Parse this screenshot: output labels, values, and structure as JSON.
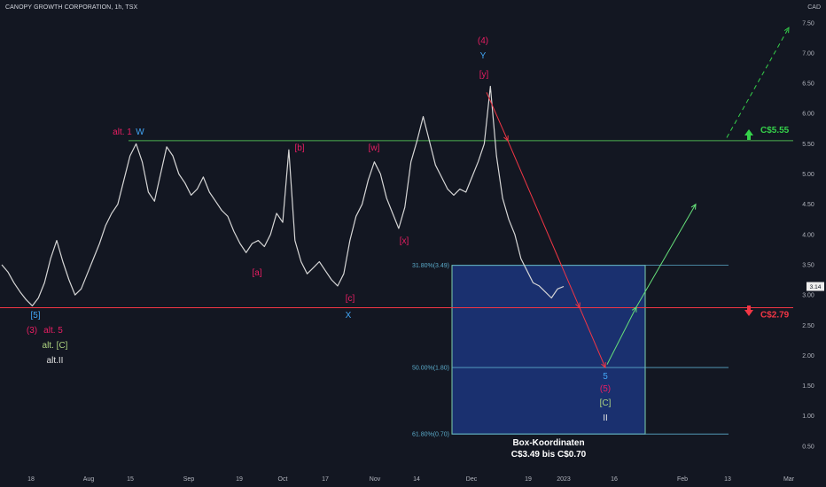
{
  "header": {
    "symbol": "CANOPY GROWTH CORPORATION",
    "timeframe": "1h",
    "exchange": "TSX"
  },
  "price_axis": {
    "currency": "CAD",
    "ticks": [
      "7.50",
      "7.00",
      "6.50",
      "6.00",
      "5.50",
      "5.00",
      "4.50",
      "4.00",
      "3.50",
      "3.00",
      "2.50",
      "2.00",
      "1.50",
      "1.00",
      "0.50"
    ],
    "current_price": "3.14"
  },
  "time_axis": {
    "ticks": [
      "18",
      "Aug",
      "15",
      "Sep",
      "19",
      "Oct",
      "17",
      "Nov",
      "14",
      "Dec",
      "19",
      "2023",
      "16",
      "Feb",
      "13",
      "Mar"
    ]
  },
  "levels": {
    "resistance": {
      "label": "C$5.55",
      "value": 5.55,
      "color": "#4caf50"
    },
    "support": {
      "label": "C$2.79",
      "value": 2.79,
      "color": "#f23645"
    }
  },
  "fibonacci": [
    {
      "label": "31.80%(3.49)",
      "value": 3.49
    },
    {
      "label": "50.00%(1.80)",
      "value": 1.8
    },
    {
      "label": "61.80%(0.70)",
      "value": 0.7
    }
  ],
  "target_box": {
    "title": "Box-Koordinaten",
    "subtitle": "C$3.49 bis C$0.70",
    "top": 3.49,
    "bottom": 0.7
  },
  "annotations": [
    {
      "text": "[5]",
      "color": "#42a5f5"
    },
    {
      "text": "(3)",
      "color": "#e91e63"
    },
    {
      "text": "alt. 5",
      "color": "#e91e63"
    },
    {
      "text": "alt. [C]",
      "color": "#aed581"
    },
    {
      "text": "alt.II",
      "color": "#e0e0e0"
    },
    {
      "text": "alt. 1",
      "color": "#e91e63"
    },
    {
      "text": "W",
      "color": "#42a5f5"
    },
    {
      "text": "[a]",
      "color": "#e91e63"
    },
    {
      "text": "[b]",
      "color": "#e91e63"
    },
    {
      "text": "[c]",
      "color": "#e91e63"
    },
    {
      "text": "X",
      "color": "#42a5f5"
    },
    {
      "text": "[w]",
      "color": "#e91e63"
    },
    {
      "text": "[x]",
      "color": "#e91e63"
    },
    {
      "text": "(4)",
      "color": "#e91e63"
    },
    {
      "text": "Y",
      "color": "#42a5f5"
    },
    {
      "text": "[y]",
      "color": "#e91e63"
    },
    {
      "text": "5",
      "color": "#42a5f5"
    },
    {
      "text": "(5)",
      "color": "#e91e63"
    },
    {
      "text": "[C]",
      "color": "#aed581"
    },
    {
      "text": "II",
      "color": "#e0e0e0"
    }
  ],
  "chart_data": {
    "type": "line",
    "title": "CANOPY GROWTH CORPORATION, 1h, TSX",
    "ylabel": "CAD",
    "ylim": [
      0.2,
      7.9
    ],
    "series": [
      {
        "values": [
          3.5,
          3.38,
          3.2,
          3.05,
          2.92,
          2.82,
          2.95,
          3.2,
          3.6,
          3.9,
          3.55,
          3.25,
          3.0,
          3.1,
          3.35,
          3.6,
          3.85,
          4.15,
          4.35,
          4.5,
          4.9,
          5.3,
          5.5,
          5.2,
          4.7,
          4.55,
          5.0,
          5.45,
          5.3,
          5.0,
          4.85,
          4.65,
          4.75,
          4.95,
          4.7,
          4.55,
          4.4,
          4.3,
          4.05,
          3.85,
          3.7,
          3.85,
          3.9,
          3.8,
          4.0,
          4.35,
          4.2,
          5.4,
          3.9,
          3.55,
          3.35,
          3.45,
          3.55,
          3.4,
          3.25,
          3.15,
          3.35,
          3.9,
          4.3,
          4.5,
          4.9,
          5.2,
          5.0,
          4.6,
          4.35,
          4.1,
          4.45,
          5.2,
          5.55,
          5.95,
          5.55,
          5.15,
          4.95,
          4.75,
          4.65,
          4.75,
          4.7,
          4.95,
          5.2,
          5.5,
          6.45,
          5.3,
          4.6,
          4.25,
          4.0,
          3.6,
          3.4,
          3.2,
          3.15,
          3.05,
          2.95,
          3.1,
          3.14
        ]
      }
    ]
  }
}
